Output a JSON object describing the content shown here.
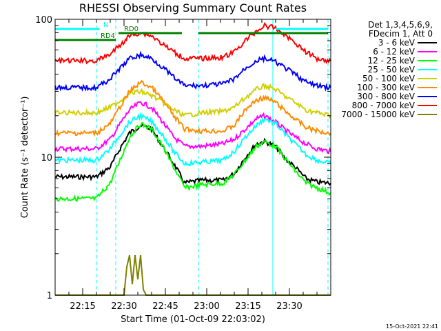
{
  "chart_data": {
    "type": "line",
    "title": "RHESSI Observing Summary Count Rates",
    "xlabel": "Start Time (01-Oct-09 22:03:02)",
    "ylabel": "Count Rate (s⁻¹ detector⁻¹)",
    "yscale": "log",
    "ylim": [
      1,
      100
    ],
    "xlim_min": [
      5,
      105
    ],
    "x_ticks": [
      {
        "value": 15,
        "label": "22:15"
      },
      {
        "value": 30,
        "label": "22:30"
      },
      {
        "value": 45,
        "label": "22:45"
      },
      {
        "value": 60,
        "label": "23:00"
      },
      {
        "value": 75,
        "label": "23:15"
      },
      {
        "value": 90,
        "label": "23:30"
      }
    ],
    "y_ticks": [
      {
        "value": 1,
        "label": "1"
      },
      {
        "value": 10,
        "label": "10"
      },
      {
        "value": 100,
        "label": "100"
      }
    ],
    "legend": {
      "header": [
        "Det 1,3,4,5,6,9,",
        "FDecim 1, Att 0"
      ],
      "position": "right"
    },
    "series": [
      {
        "name": "3 - 6 keV",
        "color": "#000000",
        "x": [
          5,
          20,
          25,
          29,
          32,
          36,
          40,
          44,
          48,
          52,
          58,
          66,
          70,
          74,
          78,
          81,
          85,
          88,
          92,
          96,
          100,
          105
        ],
        "y": [
          7.2,
          7.2,
          8.5,
          12,
          15,
          17,
          16,
          12,
          9,
          6.5,
          6.8,
          6.8,
          7.6,
          10,
          12.5,
          13,
          12,
          10,
          8.5,
          7,
          6.6,
          6.5
        ]
      },
      {
        "name": "6 - 12 keV",
        "color": "#ff00ff",
        "x": [
          5,
          20,
          25,
          29,
          32,
          36,
          40,
          44,
          48,
          52,
          58,
          66,
          70,
          74,
          78,
          81,
          85,
          88,
          92,
          96,
          100,
          105
        ],
        "y": [
          11.5,
          11.5,
          13.5,
          18,
          22,
          25,
          23,
          18,
          14,
          12,
          12,
          12.5,
          13.5,
          16,
          19,
          20,
          18,
          16,
          14,
          12.5,
          11.5,
          11
        ]
      },
      {
        "name": "12 - 25 keV",
        "color": "#00ff00",
        "x": [
          5,
          20,
          25,
          29,
          32,
          36,
          40,
          44,
          48,
          52,
          58,
          66,
          70,
          74,
          78,
          81,
          85,
          88,
          92,
          96,
          100,
          105
        ],
        "y": [
          5,
          5,
          6.5,
          10,
          14,
          17.5,
          16,
          12,
          8.5,
          6,
          6.3,
          6.5,
          7.5,
          9.5,
          12,
          13,
          12,
          10,
          8,
          6.5,
          6,
          5.5
        ]
      },
      {
        "name": "25 - 50 keV",
        "color": "#00ffff",
        "x": [
          5,
          20,
          25,
          29,
          32,
          36,
          40,
          44,
          48,
          52,
          58,
          66,
          70,
          74,
          78,
          81,
          85,
          88,
          92,
          96,
          100,
          105
        ],
        "y": [
          9.5,
          9.5,
          11.5,
          15,
          18,
          20,
          18,
          14.5,
          11,
          9,
          9.2,
          9.5,
          11,
          14,
          17,
          19,
          17.5,
          15,
          12.5,
          10.5,
          9.5,
          9
        ]
      },
      {
        "name": "50 - 100 keV",
        "color": "#d0d000",
        "x": [
          5,
          20,
          25,
          29,
          32,
          36,
          40,
          44,
          48,
          52,
          58,
          66,
          70,
          74,
          78,
          81,
          85,
          88,
          92,
          96,
          100,
          105
        ],
        "y": [
          21,
          21,
          23,
          26,
          29,
          30,
          28,
          25,
          22,
          20,
          21,
          21.5,
          23,
          27,
          31,
          33,
          31,
          28,
          25,
          22,
          21,
          20
        ]
      },
      {
        "name": "100 - 300 keV",
        "color": "#ff8c00",
        "x": [
          5,
          20,
          25,
          29,
          32,
          36,
          40,
          44,
          48,
          52,
          58,
          66,
          70,
          74,
          78,
          81,
          85,
          88,
          92,
          96,
          100,
          105
        ],
        "y": [
          15,
          15,
          17.5,
          24,
          30,
          35,
          32,
          26,
          20,
          16,
          15.5,
          15.5,
          17,
          22,
          26,
          27,
          25,
          22,
          19,
          16.5,
          15.5,
          15
        ]
      },
      {
        "name": "300 - 800 keV",
        "color": "#0000ff",
        "x": [
          5,
          20,
          25,
          29,
          32,
          36,
          40,
          44,
          48,
          52,
          58,
          66,
          70,
          74,
          78,
          81,
          85,
          88,
          92,
          96,
          100,
          105
        ],
        "y": [
          32,
          32,
          37,
          45,
          52,
          55,
          52,
          45,
          38,
          33,
          33,
          34,
          37,
          44,
          50,
          52,
          49,
          45,
          40,
          35,
          33,
          32
        ]
      },
      {
        "name": "800 - 7000 keV",
        "color": "#ff0000",
        "x": [
          5,
          20,
          25,
          29,
          32,
          36,
          40,
          44,
          48,
          52,
          58,
          66,
          70,
          74,
          78,
          81,
          85,
          88,
          92,
          96,
          100,
          105
        ],
        "y": [
          50,
          50,
          56,
          66,
          76,
          80,
          76,
          66,
          58,
          52,
          52,
          53,
          58,
          70,
          82,
          90,
          86,
          78,
          68,
          58,
          52,
          50
        ]
      },
      {
        "name": "7000 - 15000 keV",
        "color": "#808000",
        "x": [
          5,
          30,
          31,
          32,
          33,
          34,
          35,
          36,
          37,
          38,
          105
        ],
        "y": [
          1,
          1,
          1.6,
          1.95,
          1.2,
          1.95,
          1.3,
          1.95,
          1.1,
          1,
          1
        ]
      }
    ],
    "flag_bars": [
      {
        "label": "N",
        "color": "#00ffff",
        "segments": [
          [
            5,
            21
          ],
          [
            85,
            104
          ]
        ]
      },
      {
        "label": "RD4",
        "color": "#008000",
        "segments": [
          [
            5,
            27
          ]
        ]
      },
      {
        "label": "RD0",
        "color": "#008000",
        "segments": [
          [
            28,
            51
          ],
          [
            57,
            104
          ]
        ]
      }
    ],
    "vertical_lines": [
      {
        "x": 5,
        "style": "solid"
      },
      {
        "x": 20,
        "style": "dashed"
      },
      {
        "x": 27,
        "style": "dashed"
      },
      {
        "x": 57,
        "style": "dashed"
      },
      {
        "x": 84,
        "style": "solid"
      },
      {
        "x": 104,
        "style": "dashed"
      }
    ],
    "footer_stamp": "15-Oct-2021 22:41"
  }
}
